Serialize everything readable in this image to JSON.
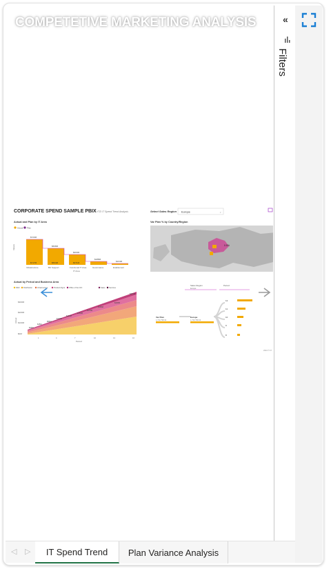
{
  "report": {
    "title": "COMPETETIVE MARKETING ANALYSIS"
  },
  "filters": {
    "label": "Filters",
    "collapse_glyph": "«"
  },
  "tabs": [
    {
      "label": "IT Spend Trend",
      "active": true
    },
    {
      "label": "Plan Variance Analysis",
      "active": false
    }
  ],
  "thumbnail": {
    "title": "CORPORATE SPEND SAMPLE PBIX",
    "subtitle": "YTD IT Spend Trend Analysis",
    "select_region_label": "Select Sales Region",
    "select_region_value": "Europe",
    "bar_title": "Actual and Plan by IT Area",
    "legend_actual": "Actual",
    "legend_plan": "Plan",
    "bar_categories": [
      "Infrastructure",
      "BU Support",
      "Functional IT Area",
      "Governance",
      "Enablement"
    ],
    "bar_values_top": [
      "$723M",
      "$508M",
      "$363M",
      "$188M",
      "$104M"
    ],
    "bar_values_inner": [
      "$717M",
      "$504M",
      "$371M",
      "",
      ""
    ],
    "bar_ylabel": "Values",
    "bar_xlabel": "IT Area",
    "map_title": "Var Plan % by Country/Region",
    "map_callout": "0.5%",
    "area_title": "Actual by Period and Business Area",
    "area_legend": [
      "R&D",
      "Distribution",
      "Infrastructure",
      "Product Mgmt",
      "Office of the CIO",
      "Sales",
      "Services"
    ],
    "area_y_ticks": [
      "$0M",
      "$100M",
      "$200M",
      "$300M"
    ],
    "area_x_ticks": [
      "1",
      "4",
      "7",
      "10",
      "13",
      "16"
    ],
    "area_xlabel": "Period",
    "area_ylabel": "Actual",
    "area_point_labels": [
      "$30M",
      "$45M",
      "$84M",
      "$103M",
      "$126M",
      "$150M",
      "$175M",
      "$199M",
      "$228M",
      "$257M"
    ],
    "decomp_sales_region": "Sales Region",
    "decomp_sales_value": "Europe",
    "decomp_period": "Period",
    "decomp_root_label": "Var Plan",
    "decomp_root_value": "1,723,798.32",
    "decomp_europe_label": "Europe",
    "decomp_europe_value": "1,723,798.32",
    "decomp_items": [
      "12",
      "11",
      "10",
      "9",
      "8"
    ],
    "footer": "2024 © FY"
  },
  "colors": {
    "accent": "#217346",
    "bar_yellow": "#f2a900",
    "plan_purple": "#c83cc8",
    "nav_blue": "#3a8fd9",
    "focus_blue": "#1a7fd4"
  },
  "icons": {
    "collapse": "double-chevron-left-icon",
    "filter": "filter-icon",
    "focus": "focus-mode-icon",
    "prev": "chevron-left-icon",
    "next": "chevron-right-icon"
  }
}
